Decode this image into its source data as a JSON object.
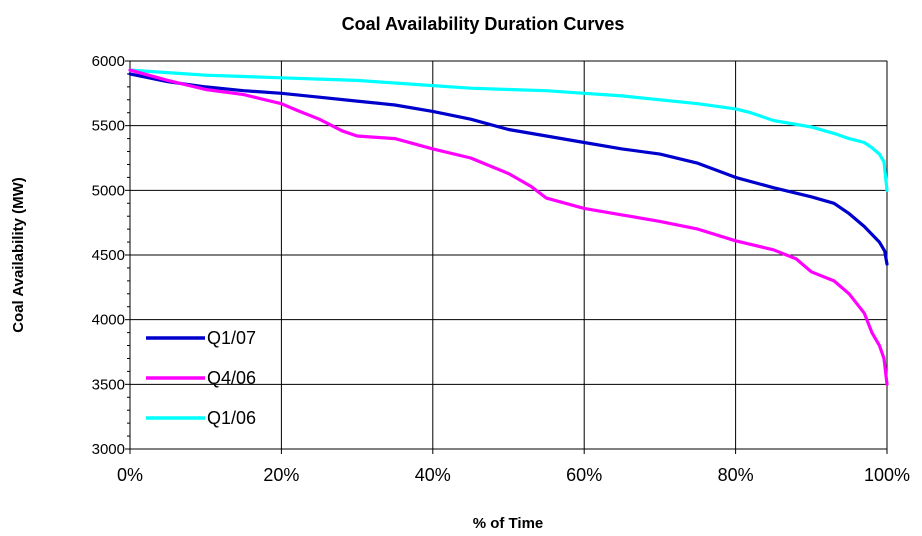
{
  "chart_data": {
    "type": "line",
    "title": "Coal Availability Duration Curves",
    "xlabel": "% of Time",
    "ylabel": "Coal Availability (MW)",
    "xlim": [
      0,
      100
    ],
    "ylim": [
      3000,
      6000
    ],
    "xticks": [
      0,
      20,
      40,
      60,
      80,
      100
    ],
    "xtick_labels": [
      "0%",
      "20%",
      "40%",
      "60%",
      "80%",
      "100%"
    ],
    "yticks": [
      3000,
      3500,
      4000,
      4500,
      5000,
      5500,
      6000
    ],
    "ytick_labels": [
      "3000",
      "3500",
      "4000",
      "4500",
      "5000",
      "5500",
      "6000"
    ],
    "grid": true,
    "legend_position": "lower-left",
    "series": [
      {
        "name": "Q1/07",
        "color": "#0000cc",
        "x": [
          0,
          5,
          10,
          15,
          20,
          25,
          30,
          35,
          40,
          45,
          50,
          55,
          60,
          65,
          70,
          75,
          80,
          85,
          90,
          93,
          95,
          97,
          99,
          99.7,
          100
        ],
        "y": [
          5900,
          5840,
          5800,
          5770,
          5750,
          5720,
          5690,
          5660,
          5610,
          5550,
          5470,
          5420,
          5370,
          5320,
          5280,
          5210,
          5100,
          5020,
          4950,
          4900,
          4820,
          4720,
          4600,
          4530,
          4430
        ]
      },
      {
        "name": "Q4/06",
        "color": "#ff00ff",
        "x": [
          0,
          5,
          10,
          15,
          20,
          22,
          25,
          28,
          30,
          35,
          40,
          45,
          50,
          53,
          55,
          60,
          65,
          70,
          75,
          80,
          85,
          88,
          90,
          93,
          95,
          97,
          98,
          99,
          99.6,
          100
        ],
        "y": [
          5930,
          5850,
          5780,
          5740,
          5670,
          5620,
          5550,
          5460,
          5420,
          5400,
          5320,
          5250,
          5130,
          5030,
          4940,
          4860,
          4810,
          4760,
          4700,
          4610,
          4540,
          4470,
          4370,
          4300,
          4200,
          4050,
          3900,
          3800,
          3700,
          3500
        ]
      },
      {
        "name": "Q1/06",
        "color": "#00ffff",
        "x": [
          0,
          5,
          10,
          15,
          20,
          25,
          30,
          35,
          40,
          45,
          50,
          55,
          60,
          65,
          70,
          75,
          80,
          82,
          85,
          90,
          93,
          95,
          97,
          98,
          99,
          99.6,
          100
        ],
        "y": [
          5930,
          5910,
          5890,
          5880,
          5870,
          5860,
          5850,
          5830,
          5810,
          5790,
          5780,
          5770,
          5750,
          5730,
          5700,
          5670,
          5630,
          5600,
          5540,
          5490,
          5440,
          5400,
          5370,
          5330,
          5280,
          5220,
          5000
        ]
      }
    ]
  }
}
